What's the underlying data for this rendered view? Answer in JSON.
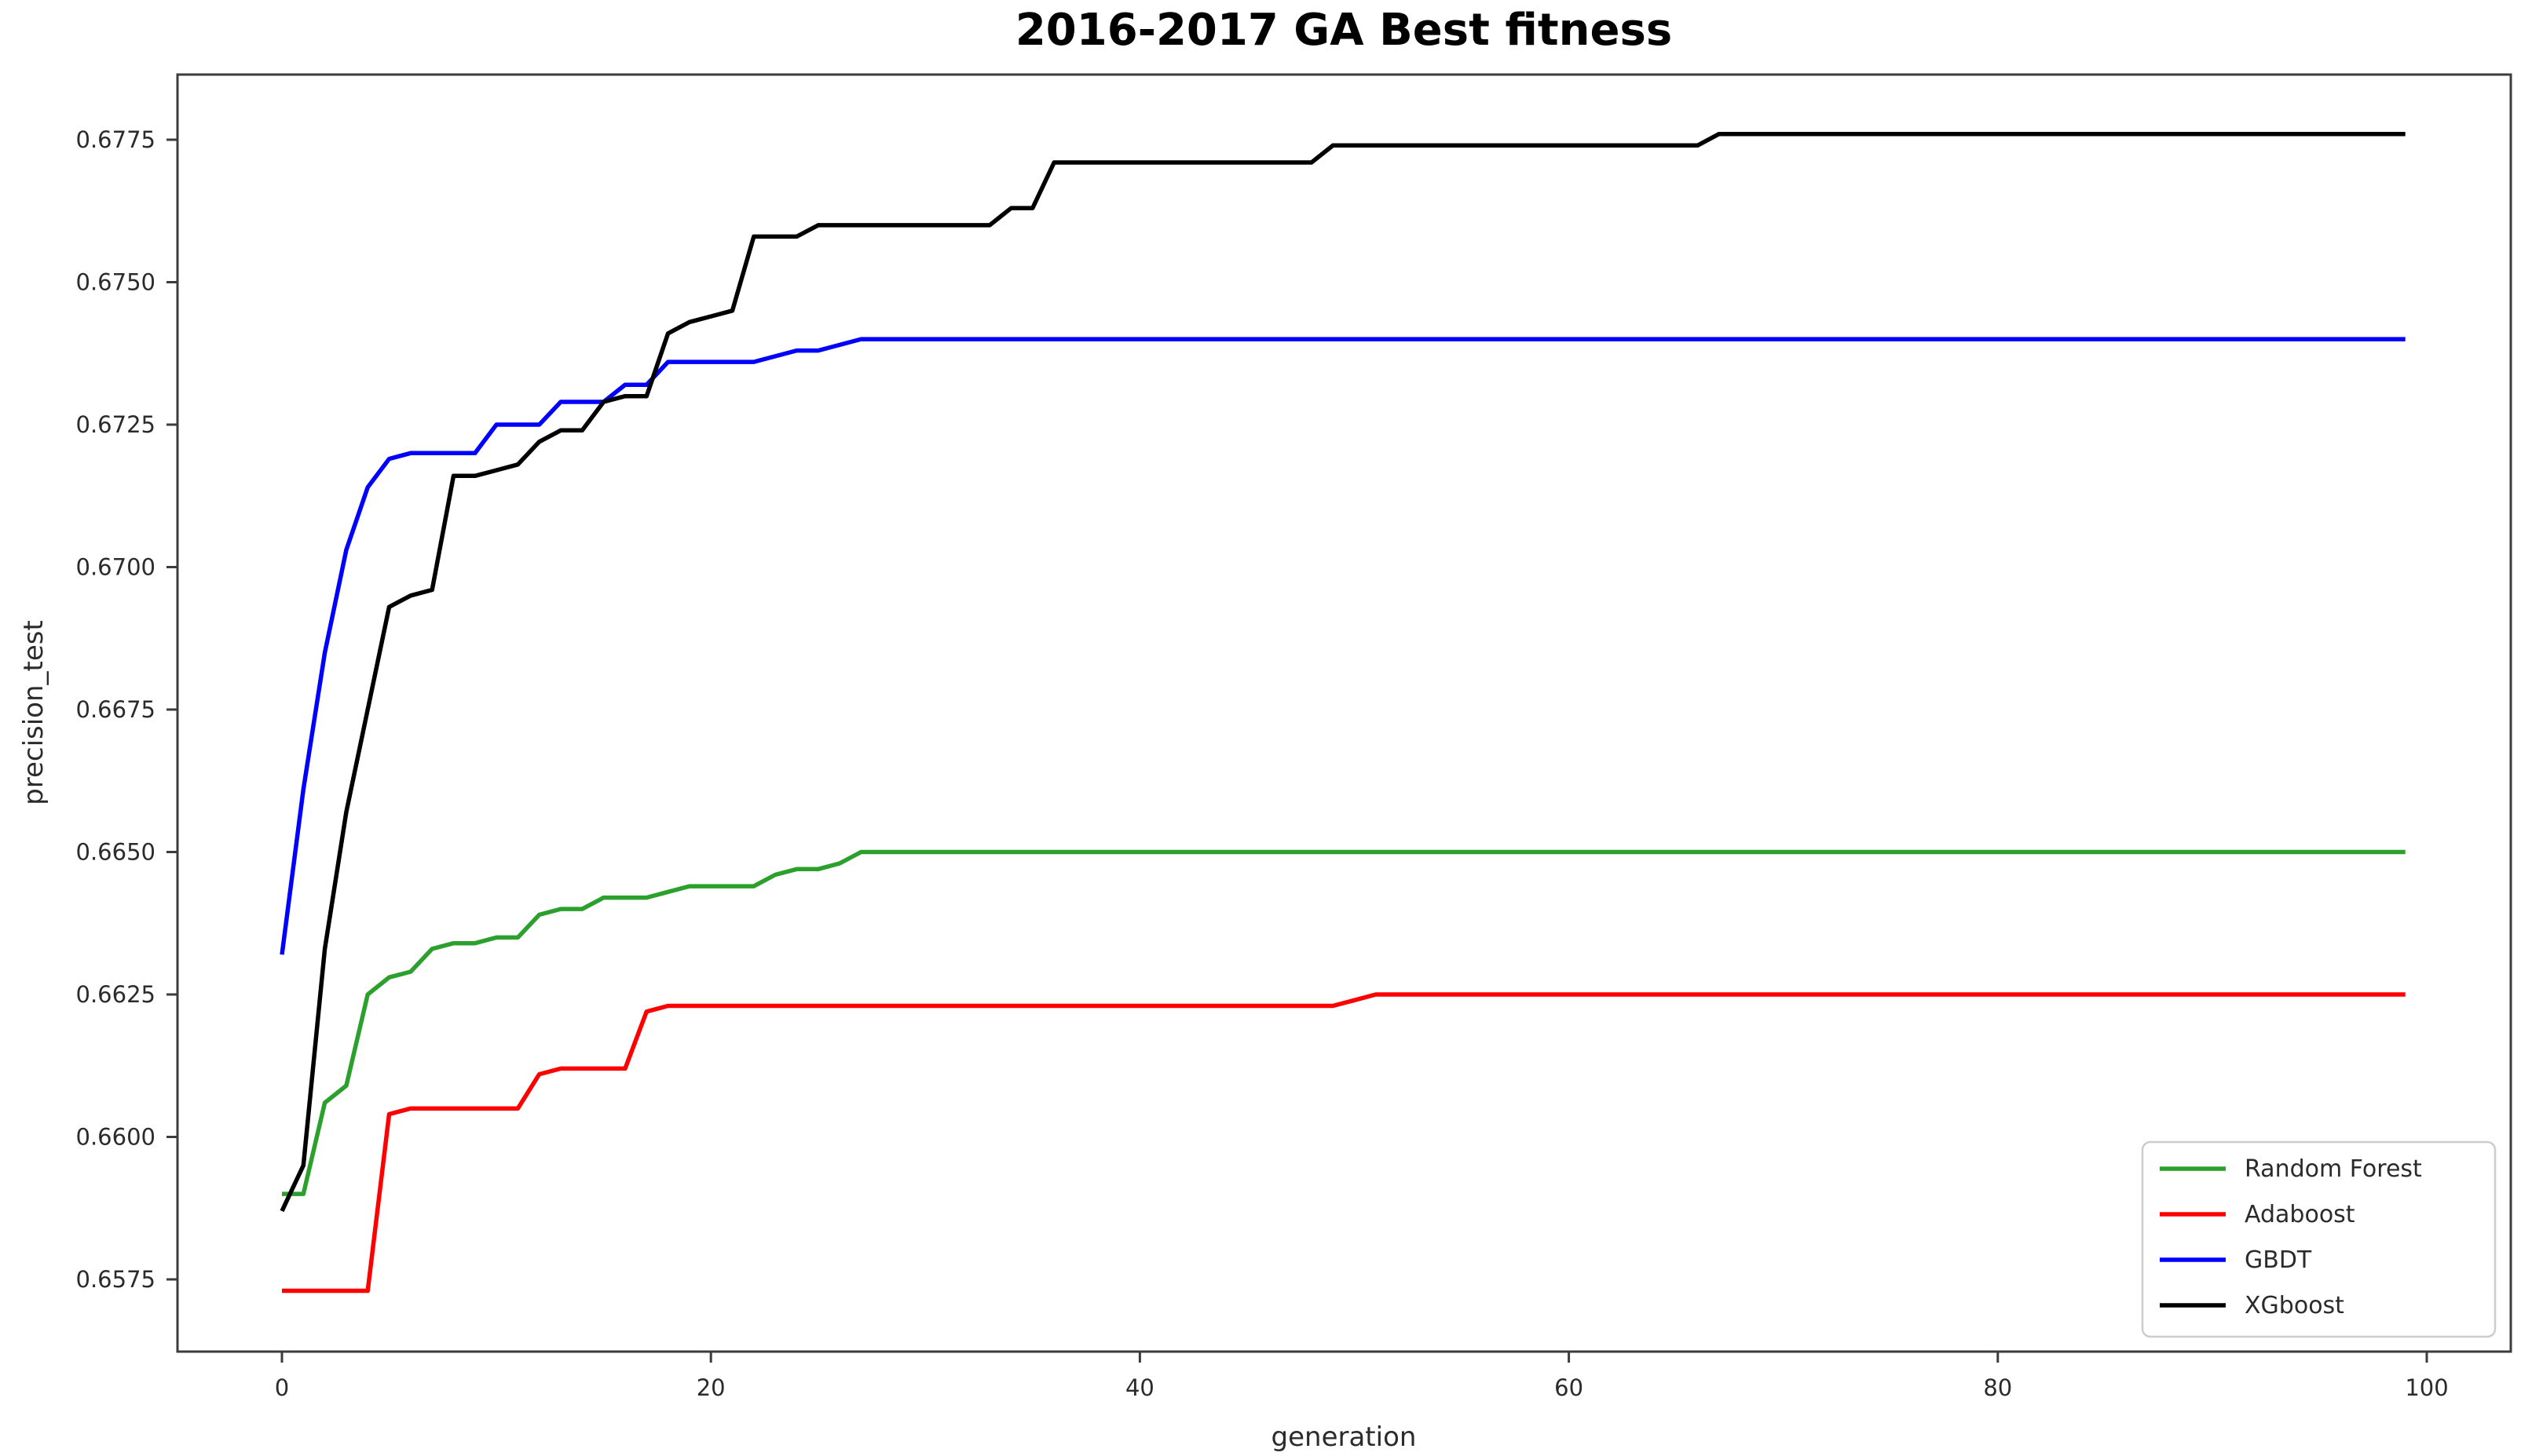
{
  "figure": {
    "background": "#ffffff",
    "spine_color": "#3c3c3c",
    "tick_color": "#3c3c3c",
    "text_color": "#2b2b2b"
  },
  "chart_data": {
    "type": "line",
    "title": "2016-2017 GA Best fitness",
    "xlabel": "generation",
    "ylabel": "precision_test",
    "x_description": "generation index 0 to 99, one point per generation",
    "x_start": 0,
    "x_end": 99,
    "xlim": [
      -5,
      104
    ],
    "ylim": [
      0.6561,
      0.6787
    ],
    "xticks": [
      0,
      20,
      40,
      60,
      80,
      100
    ],
    "yticks": [
      0.6575,
      0.66,
      0.6625,
      0.665,
      0.6675,
      0.67,
      0.6725,
      0.675,
      0.6775
    ],
    "grid": false,
    "legend_position": "lower right",
    "series": [
      {
        "name": "Random Forest",
        "color": "#2ca02c",
        "values": [
          0.659,
          0.659,
          0.6606,
          0.6609,
          0.6625,
          0.6628,
          0.6629,
          0.6633,
          0.6634,
          0.6634,
          0.6635,
          0.6635,
          0.6639,
          0.664,
          0.664,
          0.6642,
          0.6642,
          0.6642,
          0.6643,
          0.6644,
          0.6644,
          0.6644,
          0.6644,
          0.6646,
          0.6647,
          0.6647,
          0.6648,
          0.665,
          0.665,
          0.665,
          0.665,
          0.665,
          0.665,
          0.665,
          0.665,
          0.665,
          0.665,
          0.665,
          0.665,
          0.665,
          0.665,
          0.665,
          0.665,
          0.665,
          0.665,
          0.665,
          0.665,
          0.665,
          0.665,
          0.665,
          0.665,
          0.665,
          0.665,
          0.665,
          0.665,
          0.665,
          0.665,
          0.665,
          0.665,
          0.665,
          0.665,
          0.665,
          0.665,
          0.665,
          0.665,
          0.665,
          0.665,
          0.665,
          0.665,
          0.665,
          0.665,
          0.665,
          0.665,
          0.665,
          0.665,
          0.665,
          0.665,
          0.665,
          0.665,
          0.665,
          0.665,
          0.665,
          0.665,
          0.665,
          0.665,
          0.665,
          0.665,
          0.665,
          0.665,
          0.665,
          0.665,
          0.665,
          0.665,
          0.665,
          0.665,
          0.665,
          0.665,
          0.665,
          0.665,
          0.665
        ]
      },
      {
        "name": "Adaboost",
        "color": "#ff0000",
        "values": [
          0.6573,
          0.6573,
          0.6573,
          0.6573,
          0.6573,
          0.6604,
          0.6605,
          0.6605,
          0.6605,
          0.6605,
          0.6605,
          0.6605,
          0.6611,
          0.6612,
          0.6612,
          0.6612,
          0.6612,
          0.6622,
          0.6623,
          0.6623,
          0.6623,
          0.6623,
          0.6623,
          0.6623,
          0.6623,
          0.6623,
          0.6623,
          0.6623,
          0.6623,
          0.6623,
          0.6623,
          0.6623,
          0.6623,
          0.6623,
          0.6623,
          0.6623,
          0.6623,
          0.6623,
          0.6623,
          0.6623,
          0.6623,
          0.6623,
          0.6623,
          0.6623,
          0.6623,
          0.6623,
          0.6623,
          0.6623,
          0.6623,
          0.6623,
          0.6624,
          0.6625,
          0.6625,
          0.6625,
          0.6625,
          0.6625,
          0.6625,
          0.6625,
          0.6625,
          0.6625,
          0.6625,
          0.6625,
          0.6625,
          0.6625,
          0.6625,
          0.6625,
          0.6625,
          0.6625,
          0.6625,
          0.6625,
          0.6625,
          0.6625,
          0.6625,
          0.6625,
          0.6625,
          0.6625,
          0.6625,
          0.6625,
          0.6625,
          0.6625,
          0.6625,
          0.6625,
          0.6625,
          0.6625,
          0.6625,
          0.6625,
          0.6625,
          0.6625,
          0.6625,
          0.6625,
          0.6625,
          0.6625,
          0.6625,
          0.6625,
          0.6625,
          0.6625,
          0.6625,
          0.6625,
          0.6625,
          0.6625
        ]
      },
      {
        "name": "GBDT",
        "color": "#0000ff",
        "values": [
          0.6632,
          0.6661,
          0.6685,
          0.6703,
          0.6714,
          0.6719,
          0.672,
          0.672,
          0.672,
          0.672,
          0.6725,
          0.6725,
          0.6725,
          0.6729,
          0.6729,
          0.6729,
          0.6732,
          0.6732,
          0.6736,
          0.6736,
          0.6736,
          0.6736,
          0.6736,
          0.6737,
          0.6738,
          0.6738,
          0.6739,
          0.674,
          0.674,
          0.674,
          0.674,
          0.674,
          0.674,
          0.674,
          0.674,
          0.674,
          0.674,
          0.674,
          0.674,
          0.674,
          0.674,
          0.674,
          0.674,
          0.674,
          0.674,
          0.674,
          0.674,
          0.674,
          0.674,
          0.674,
          0.674,
          0.674,
          0.674,
          0.674,
          0.674,
          0.674,
          0.674,
          0.674,
          0.674,
          0.674,
          0.674,
          0.674,
          0.674,
          0.674,
          0.674,
          0.674,
          0.674,
          0.674,
          0.674,
          0.674,
          0.674,
          0.674,
          0.674,
          0.674,
          0.674,
          0.674,
          0.674,
          0.674,
          0.674,
          0.674,
          0.674,
          0.674,
          0.674,
          0.674,
          0.674,
          0.674,
          0.674,
          0.674,
          0.674,
          0.674,
          0.674,
          0.674,
          0.674,
          0.674,
          0.674,
          0.674,
          0.674,
          0.674,
          0.674,
          0.674
        ]
      },
      {
        "name": "XGboost",
        "color": "#000000",
        "values": [
          0.6587,
          0.6595,
          0.6633,
          0.6657,
          0.6675,
          0.6693,
          0.6695,
          0.6696,
          0.6716,
          0.6716,
          0.6717,
          0.6718,
          0.6722,
          0.6724,
          0.6724,
          0.6729,
          0.673,
          0.673,
          0.6741,
          0.6743,
          0.6744,
          0.6745,
          0.6758,
          0.6758,
          0.6758,
          0.676,
          0.676,
          0.676,
          0.676,
          0.676,
          0.676,
          0.676,
          0.676,
          0.676,
          0.6763,
          0.6763,
          0.6771,
          0.6771,
          0.6771,
          0.6771,
          0.6771,
          0.6771,
          0.6771,
          0.6771,
          0.6771,
          0.6771,
          0.6771,
          0.6771,
          0.6771,
          0.6774,
          0.6774,
          0.6774,
          0.6774,
          0.6774,
          0.6774,
          0.6774,
          0.6774,
          0.6774,
          0.6774,
          0.6774,
          0.6774,
          0.6774,
          0.6774,
          0.6774,
          0.6774,
          0.6774,
          0.6774,
          0.6776,
          0.6776,
          0.6776,
          0.6776,
          0.6776,
          0.6776,
          0.6776,
          0.6776,
          0.6776,
          0.6776,
          0.6776,
          0.6776,
          0.6776,
          0.6776,
          0.6776,
          0.6776,
          0.6776,
          0.6776,
          0.6776,
          0.6776,
          0.6776,
          0.6776,
          0.6776,
          0.6776,
          0.6776,
          0.6776,
          0.6776,
          0.6776,
          0.6776,
          0.6776,
          0.6776,
          0.6776,
          0.6776
        ]
      }
    ]
  },
  "legend": {
    "entries": [
      {
        "label": "Random Forest",
        "color": "#2ca02c"
      },
      {
        "label": "Adaboost",
        "color": "#ff0000"
      },
      {
        "label": "GBDT",
        "color": "#0000ff"
      },
      {
        "label": "XGboost",
        "color": "#000000"
      }
    ]
  }
}
